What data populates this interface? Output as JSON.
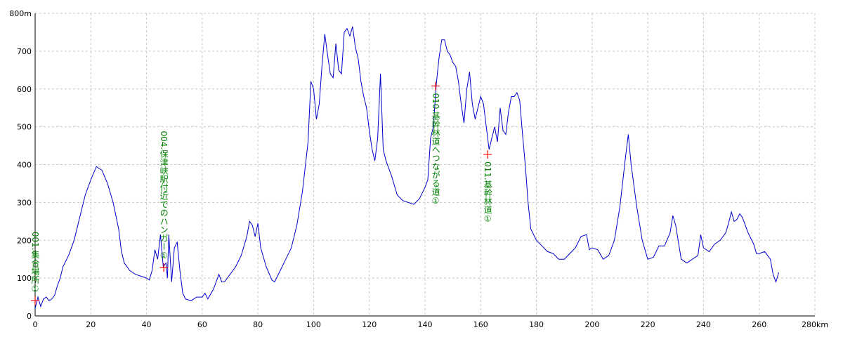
{
  "chart_data": {
    "type": "line",
    "color": "#0000cc",
    "grid": true,
    "xlim": [
      0,
      280
    ],
    "xticks": [
      0,
      20,
      40,
      60,
      80,
      100,
      120,
      140,
      160,
      180,
      200,
      220,
      240,
      260,
      {
        "value": 280,
        "label": "280km"
      }
    ],
    "ylim": [
      0,
      800
    ],
    "yticks": [
      0,
      100,
      200,
      300,
      400,
      500,
      600,
      700,
      {
        "value": 800,
        "label": "800m"
      }
    ],
    "x": [
      0,
      1,
      2,
      3,
      4,
      5,
      6,
      7,
      8,
      9,
      10,
      12,
      14,
      16,
      18,
      20,
      22,
      24,
      26,
      28,
      30,
      31,
      32,
      34,
      36,
      38,
      40,
      41,
      42,
      43,
      44,
      45,
      46,
      47,
      47.5,
      48,
      49,
      50,
      51,
      52,
      53,
      54,
      56,
      58,
      60,
      61,
      62,
      64,
      66,
      67,
      68,
      70,
      72,
      74,
      76,
      77,
      78,
      79,
      80,
      81,
      83,
      85,
      86,
      88,
      90,
      92,
      94,
      96,
      98,
      99,
      100,
      101,
      102,
      103,
      104,
      105,
      106,
      107,
      108,
      109,
      110,
      111,
      112,
      113,
      114,
      115,
      116,
      117,
      118,
      119,
      120,
      121,
      122,
      123,
      124,
      125,
      126,
      128,
      130,
      132,
      134,
      136,
      138,
      140,
      141,
      142,
      143,
      144,
      145,
      146,
      147,
      148,
      149,
      150,
      151,
      152,
      153,
      154,
      155,
      156,
      157,
      158,
      159,
      160,
      161,
      162,
      163,
      164,
      165,
      166,
      167,
      168,
      169,
      170,
      171,
      172,
      173,
      174,
      175,
      176,
      177,
      178,
      180,
      182,
      184,
      186,
      188,
      190,
      192,
      194,
      196,
      198,
      199,
      200,
      202,
      204,
      206,
      208,
      210,
      212,
      213,
      214,
      216,
      218,
      220,
      222,
      224,
      226,
      228,
      229,
      230,
      232,
      234,
      236,
      238,
      239,
      240,
      242,
      244,
      246,
      248,
      249,
      250,
      251,
      252,
      253,
      254,
      256,
      258,
      259,
      260,
      262,
      264,
      265,
      266,
      267
    ],
    "values": [
      20,
      50,
      25,
      45,
      50,
      40,
      45,
      55,
      80,
      100,
      130,
      160,
      200,
      260,
      320,
      360,
      395,
      385,
      350,
      300,
      230,
      170,
      140,
      120,
      110,
      105,
      100,
      95,
      120,
      175,
      150,
      215,
      130,
      140,
      100,
      215,
      90,
      180,
      195,
      120,
      60,
      45,
      40,
      50,
      50,
      60,
      45,
      70,
      110,
      90,
      90,
      110,
      130,
      160,
      210,
      250,
      240,
      210,
      245,
      180,
      130,
      95,
      90,
      120,
      150,
      180,
      240,
      330,
      460,
      620,
      600,
      520,
      560,
      660,
      745,
      690,
      640,
      630,
      720,
      650,
      640,
      750,
      760,
      740,
      765,
      710,
      680,
      620,
      580,
      550,
      490,
      440,
      410,
      470,
      640,
      440,
      410,
      370,
      320,
      305,
      300,
      295,
      310,
      340,
      360,
      470,
      500,
      610,
      680,
      730,
      730,
      700,
      690,
      670,
      660,
      620,
      560,
      510,
      600,
      645,
      560,
      520,
      550,
      580,
      560,
      500,
      440,
      470,
      500,
      460,
      550,
      490,
      480,
      540,
      580,
      580,
      590,
      570,
      480,
      400,
      300,
      230,
      200,
      185,
      170,
      165,
      150,
      150,
      165,
      180,
      210,
      215,
      175,
      180,
      175,
      150,
      160,
      200,
      290,
      420,
      480,
      400,
      290,
      200,
      150,
      155,
      185,
      185,
      220,
      265,
      240,
      150,
      140,
      150,
      160,
      215,
      180,
      170,
      190,
      200,
      220,
      245,
      275,
      250,
      255,
      270,
      260,
      220,
      190,
      165,
      165,
      170,
      150,
      110,
      90,
      115
    ],
    "markers": [
      {
        "label": "001.集合場所①",
        "x": 0,
        "y": 40
      },
      {
        "label": "004.保津峡駅付近でのハンガー①",
        "x": 46.2,
        "y": 128
      },
      {
        "label": "010.基幹林道へつながる道①",
        "x": 143.8,
        "y": 608
      },
      {
        "label": "011.基幹林道①",
        "x": 162.5,
        "y": 427
      }
    ]
  }
}
